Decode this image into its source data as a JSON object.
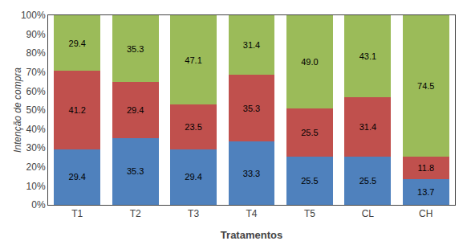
{
  "chart_data": {
    "type": "bar",
    "stacked": true,
    "data_labels": true,
    "grid": false,
    "xlabel": "Tratamentos",
    "ylabel": "Intenção de compra",
    "categories": [
      "T1",
      "T2",
      "T3",
      "T4",
      "T5",
      "CL",
      "CH"
    ],
    "series": [
      {
        "color": "#4F81BD",
        "values": [
          29.4,
          35.3,
          29.4,
          33.3,
          25.5,
          25.5,
          13.7
        ],
        "value_labels": [
          "29.4",
          "35.3",
          "29.4",
          "33.3",
          "25.5",
          "25.5",
          "13.7"
        ]
      },
      {
        "color": "#C0504D",
        "values": [
          41.2,
          29.4,
          23.5,
          35.3,
          25.5,
          31.4,
          11.8
        ],
        "value_labels": [
          "41.2",
          "29.4",
          "23.5",
          "35.3",
          "25.5",
          "31.4",
          "11.8"
        ]
      },
      {
        "color": "#9BBB59",
        "values": [
          29.4,
          35.3,
          47.1,
          31.4,
          49.0,
          43.1,
          74.5
        ],
        "value_labels": [
          "29.4",
          "35.3",
          "47.1",
          "31.4",
          "49.0",
          "43.1",
          "74.5"
        ]
      }
    ],
    "ylim": [
      0,
      100
    ],
    "yticks": [
      {
        "value": 0,
        "label": "0%"
      },
      {
        "value": 10,
        "label": "10%"
      },
      {
        "value": 20,
        "label": "20%"
      },
      {
        "value": 30,
        "label": "30%"
      },
      {
        "value": 40,
        "label": "40%"
      },
      {
        "value": 50,
        "label": "50%"
      },
      {
        "value": 60,
        "label": "60%"
      },
      {
        "value": 70,
        "label": "70%"
      },
      {
        "value": 80,
        "label": "80%"
      },
      {
        "value": 90,
        "label": "90%"
      },
      {
        "value": 100,
        "label": "100%"
      }
    ]
  }
}
